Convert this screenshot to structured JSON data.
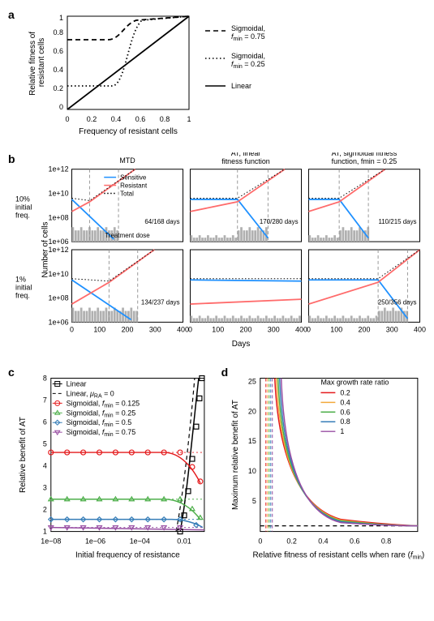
{
  "panel_a": {
    "label": "a",
    "xlabel": "Frequency of resistant cells",
    "ylabel": "Relative fitness of\nresistant cells",
    "xlim": [
      0,
      1
    ],
    "ylim": [
      0,
      1
    ],
    "xticks": [
      0.0,
      0.2,
      0.4,
      0.6,
      0.8,
      1.0
    ],
    "yticks": [
      0.0,
      0.2,
      0.4,
      0.6,
      0.8,
      1.0
    ],
    "legend": [
      {
        "label": "Sigmoidal,\nfmin = 0.75",
        "style": "dashed"
      },
      {
        "label": "Sigmoidal,\nfmin = 0.25",
        "style": "dotted"
      },
      {
        "label": "Linear",
        "style": "solid"
      }
    ],
    "line_color": "#000000",
    "background": "#ffffff"
  },
  "panel_b": {
    "label": "b",
    "col_titles": [
      "MTD",
      "AT, linear\nfitness function",
      "AT, sigmoidal fitness\nfunction, fmin = 0.25"
    ],
    "row_titles": [
      "10%\ninitial\nfreq.",
      "1%\ninitial\nfreq."
    ],
    "ylabel": "Number of cells",
    "xlabel": "Days",
    "xlim": [
      0,
      400
    ],
    "xticks": [
      0,
      100,
      200,
      300,
      400
    ],
    "yticks_log": [
      "1e+06",
      "1e+08",
      "1e+10",
      "1e+12"
    ],
    "annotations": [
      "64/168 days",
      "170/280 days",
      "110/215 days",
      "134/237 days",
      "",
      "250/356 days"
    ],
    "dose_label": "Treatment dose",
    "legend": [
      {
        "label": "Sensitive",
        "color": "#1e90ff"
      },
      {
        "label": "Resistant",
        "color": "#ff6b6b"
      },
      {
        "label": "Total",
        "color": "#000000",
        "style": "dotted"
      }
    ],
    "bar_color": "#b0b0b0",
    "bg": "#ffffff",
    "border": "#000000"
  },
  "panel_c": {
    "label": "c",
    "xlabel": "Initial frequency of resistance",
    "ylabel": "Relative benefit of AT",
    "xticks": [
      "1e−08",
      "1e−06",
      "1e−04",
      "0.01"
    ],
    "yticks": [
      1,
      2,
      3,
      4,
      5,
      6,
      7,
      8
    ],
    "legend": [
      {
        "label": "Linear",
        "color": "#000000",
        "shape": "square"
      },
      {
        "label": "Linear, μRA = 0",
        "color": "#000000",
        "style": "dashed"
      },
      {
        "label": "Sigmoidal, fmin = 0.125",
        "color": "#e41a1c",
        "shape": "circle"
      },
      {
        "label": "Sigmoidal, fmin = 0.25",
        "color": "#4daf4a",
        "shape": "triangle"
      },
      {
        "label": "Sigmoidal, fmin = 0.5",
        "color": "#377eb8",
        "shape": "diamond"
      },
      {
        "label": "Sigmoidal, fmin = 0.75",
        "color": "#984ea3",
        "shape": "invtriangle"
      }
    ],
    "background": "#ffffff"
  },
  "panel_d": {
    "label": "d",
    "xlabel": "Relative fitness of resistant cells when rare (fmin)",
    "ylabel": "Maximum relative benefit of AT",
    "xlim": [
      0,
      1
    ],
    "xticks": [
      0.0,
      0.2,
      0.4,
      0.6,
      0.8
    ],
    "yticks": [
      5,
      10,
      15,
      20,
      25
    ],
    "legend_title": "Max growth rate ratio",
    "legend": [
      {
        "label": "0.2",
        "color": "#e41a1c"
      },
      {
        "label": "0.4",
        "color": "#f2a93b"
      },
      {
        "label": "0.6",
        "color": "#4daf4a"
      },
      {
        "label": "0.8",
        "color": "#377eb8"
      },
      {
        "label": "1",
        "color": "#984ea3"
      }
    ],
    "hline_color": "#000000",
    "background": "#ffffff"
  }
}
